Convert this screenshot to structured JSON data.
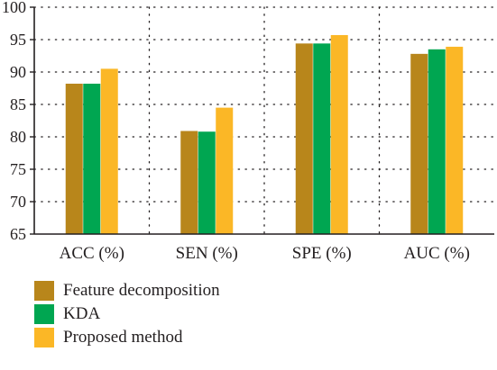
{
  "chart_data": {
    "type": "bar",
    "categories": [
      "ACC (%)",
      "SEN (%)",
      "SPE (%)",
      "AUC (%)"
    ],
    "series": [
      {
        "name": "Feature decomposition",
        "color": "#b8861b",
        "values": [
          88.2,
          80.9,
          94.4,
          92.8
        ]
      },
      {
        "name": "KDA",
        "color": "#00a651",
        "values": [
          88.2,
          80.8,
          94.4,
          93.5
        ]
      },
      {
        "name": "Proposed method",
        "color": "#fbb726",
        "values": [
          90.5,
          84.5,
          95.7,
          93.9
        ]
      }
    ],
    "ylim": [
      65,
      100
    ],
    "yticks": [
      65,
      70,
      75,
      80,
      85,
      90,
      95,
      100
    ],
    "grid": true,
    "legend_position": "bottom-left"
  }
}
